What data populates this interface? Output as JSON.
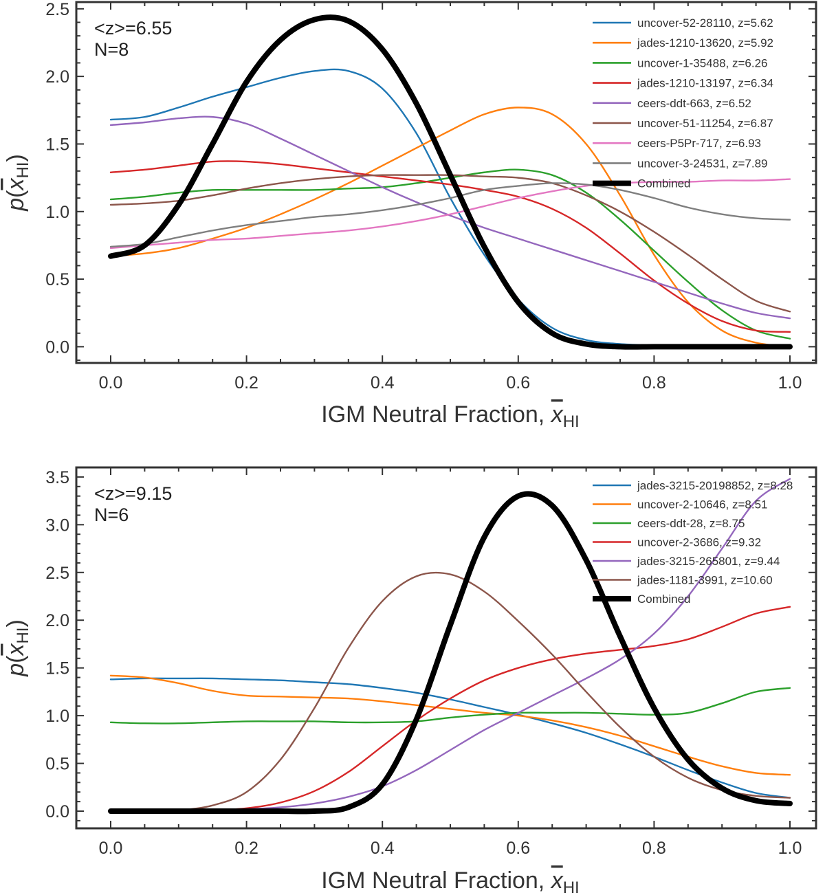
{
  "chart_data": [
    {
      "type": "line",
      "xlabel": "IGM Neutral Fraction, x̄HI",
      "ylabel": "p(x̄HI)",
      "xlabel_text": "IGM Neutral Fraction, ",
      "xlabel_sym": "x",
      "xlabel_sub": "HI",
      "ylabel_p": "p(",
      "ylabel_sym": "x",
      "ylabel_sub": "HI",
      "ylabel_close": ")",
      "xlim": [
        0.0,
        1.0
      ],
      "ylim": [
        -0.12,
        2.55
      ],
      "xticks": [
        0.0,
        0.2,
        0.4,
        0.6,
        0.8,
        1.0
      ],
      "xtick_labels": [
        "0.0",
        "0.2",
        "0.4",
        "0.6",
        "0.8",
        "1.0"
      ],
      "yticks": [
        0.0,
        0.5,
        1.0,
        1.5,
        2.0,
        2.5
      ],
      "ytick_labels": [
        "0.0",
        "0.5",
        "1.0",
        "1.5",
        "2.0",
        "2.5"
      ],
      "annotation_lines": [
        "<z>=6.55",
        "N=8"
      ],
      "legend_position": "top-right",
      "grid": false,
      "x": [
        0.0,
        0.05,
        0.1,
        0.15,
        0.2,
        0.25,
        0.3,
        0.35,
        0.4,
        0.45,
        0.5,
        0.55,
        0.6,
        0.65,
        0.7,
        0.75,
        0.8,
        0.85,
        0.9,
        0.95,
        1.0
      ],
      "series": [
        {
          "name": "uncover-52-28110, z=5.62",
          "color": "#1f77b4",
          "values": [
            1.68,
            1.7,
            1.77,
            1.85,
            1.92,
            1.99,
            2.04,
            2.04,
            1.91,
            1.58,
            1.1,
            0.68,
            0.35,
            0.14,
            0.05,
            0.02,
            0.01,
            0.0,
            0.0,
            0.0,
            0.0
          ]
        },
        {
          "name": "jades-1210-13620, z=5.92",
          "color": "#ff7f0e",
          "values": [
            0.67,
            0.69,
            0.73,
            0.8,
            0.88,
            0.98,
            1.09,
            1.21,
            1.34,
            1.47,
            1.6,
            1.72,
            1.77,
            1.72,
            1.5,
            1.12,
            0.68,
            0.33,
            0.12,
            0.03,
            0.0
          ]
        },
        {
          "name": "uncover-1-35488, z=6.26",
          "color": "#2ca02c",
          "values": [
            1.09,
            1.11,
            1.14,
            1.16,
            1.16,
            1.16,
            1.16,
            1.17,
            1.18,
            1.21,
            1.25,
            1.29,
            1.31,
            1.27,
            1.14,
            0.94,
            0.71,
            0.48,
            0.27,
            0.12,
            0.06
          ]
        },
        {
          "name": "jades-1210-13197, z=6.34",
          "color": "#d62728",
          "values": [
            1.29,
            1.31,
            1.34,
            1.37,
            1.37,
            1.35,
            1.32,
            1.29,
            1.26,
            1.23,
            1.2,
            1.16,
            1.11,
            1.02,
            0.88,
            0.69,
            0.49,
            0.32,
            0.19,
            0.12,
            0.11
          ]
        },
        {
          "name": "ceers-ddt-663, z=6.52",
          "color": "#9467bd",
          "values": [
            1.64,
            1.66,
            1.69,
            1.7,
            1.65,
            1.54,
            1.42,
            1.3,
            1.18,
            1.07,
            0.97,
            0.88,
            0.8,
            0.72,
            0.64,
            0.56,
            0.48,
            0.4,
            0.32,
            0.25,
            0.21
          ]
        },
        {
          "name": "uncover-51-11254, z=6.87",
          "color": "#8c564b",
          "values": [
            1.05,
            1.06,
            1.08,
            1.12,
            1.17,
            1.21,
            1.24,
            1.26,
            1.27,
            1.27,
            1.27,
            1.26,
            1.25,
            1.21,
            1.12,
            1.0,
            0.85,
            0.68,
            0.5,
            0.34,
            0.26
          ]
        },
        {
          "name": "ceers-P5Pr-717, z=6.93",
          "color": "#e377c2",
          "values": [
            0.73,
            0.75,
            0.77,
            0.79,
            0.8,
            0.82,
            0.84,
            0.86,
            0.89,
            0.93,
            0.98,
            1.04,
            1.1,
            1.15,
            1.19,
            1.21,
            1.22,
            1.22,
            1.23,
            1.23,
            1.24
          ]
        },
        {
          "name": "uncover-3-24531, z=7.89",
          "color": "#7f7f7f",
          "values": [
            0.74,
            0.76,
            0.81,
            0.86,
            0.9,
            0.93,
            0.96,
            0.98,
            1.01,
            1.05,
            1.1,
            1.16,
            1.19,
            1.21,
            1.2,
            1.16,
            1.1,
            1.03,
            0.98,
            0.95,
            0.94
          ]
        },
        {
          "name": "Combined",
          "color": "#000000",
          "width": 8,
          "values": [
            0.67,
            0.75,
            1.05,
            1.5,
            1.96,
            2.27,
            2.42,
            2.41,
            2.2,
            1.8,
            1.27,
            0.74,
            0.33,
            0.1,
            0.02,
            0.0,
            0.0,
            0.0,
            0.0,
            0.0,
            0.0
          ]
        }
      ]
    },
    {
      "type": "line",
      "xlabel": "IGM Neutral Fraction, x̄HI",
      "ylabel": "p(x̄HI)",
      "xlabel_text": "IGM Neutral Fraction, ",
      "xlabel_sym": "x",
      "xlabel_sub": "HI",
      "ylabel_p": "p(",
      "ylabel_sym": "x",
      "ylabel_sub": "HI",
      "ylabel_close": ")",
      "xlim": [
        0.0,
        1.0
      ],
      "ylim": [
        -0.18,
        3.6
      ],
      "xticks": [
        0.0,
        0.2,
        0.4,
        0.6,
        0.8,
        1.0
      ],
      "xtick_labels": [
        "0.0",
        "0.2",
        "0.4",
        "0.6",
        "0.8",
        "1.0"
      ],
      "yticks": [
        0.0,
        0.5,
        1.0,
        1.5,
        2.0,
        2.5,
        3.0,
        3.5
      ],
      "ytick_labels": [
        "0.0",
        "0.5",
        "1.0",
        "1.5",
        "2.0",
        "2.5",
        "3.0",
        "3.5"
      ],
      "annotation_lines": [
        "<z>=9.15",
        "N=6"
      ],
      "legend_position": "top-right",
      "grid": false,
      "x": [
        0.0,
        0.05,
        0.1,
        0.15,
        0.2,
        0.25,
        0.3,
        0.35,
        0.4,
        0.45,
        0.5,
        0.55,
        0.6,
        0.65,
        0.7,
        0.75,
        0.8,
        0.85,
        0.9,
        0.95,
        1.0
      ],
      "series": [
        {
          "name": "jades-3215-20198852, z=8.28",
          "color": "#1f77b4",
          "values": [
            1.38,
            1.39,
            1.39,
            1.39,
            1.38,
            1.37,
            1.35,
            1.33,
            1.29,
            1.24,
            1.17,
            1.09,
            1.01,
            0.92,
            0.82,
            0.7,
            0.57,
            0.43,
            0.3,
            0.19,
            0.14
          ]
        },
        {
          "name": "uncover-2-10646, z=8.51",
          "color": "#ff7f0e",
          "values": [
            1.42,
            1.4,
            1.34,
            1.26,
            1.21,
            1.2,
            1.19,
            1.18,
            1.15,
            1.11,
            1.07,
            1.03,
            1.0,
            0.95,
            0.88,
            0.79,
            0.68,
            0.57,
            0.47,
            0.4,
            0.38
          ]
        },
        {
          "name": "ceers-ddt-28, z=8.75",
          "color": "#2ca02c",
          "values": [
            0.93,
            0.92,
            0.92,
            0.93,
            0.94,
            0.94,
            0.94,
            0.93,
            0.93,
            0.94,
            0.98,
            1.01,
            1.03,
            1.03,
            1.03,
            1.02,
            1.01,
            1.03,
            1.13,
            1.25,
            1.29
          ]
        },
        {
          "name": "uncover-2-3686, z=9.32",
          "color": "#d62728",
          "values": [
            0.0,
            0.0,
            0.0,
            0.01,
            0.03,
            0.09,
            0.21,
            0.41,
            0.68,
            0.95,
            1.18,
            1.37,
            1.5,
            1.59,
            1.65,
            1.69,
            1.73,
            1.8,
            1.93,
            2.07,
            2.14
          ]
        },
        {
          "name": "jades-3215-265801, z=9.44",
          "color": "#9467bd",
          "values": [
            0.0,
            0.0,
            0.0,
            0.01,
            0.02,
            0.04,
            0.08,
            0.15,
            0.26,
            0.43,
            0.64,
            0.85,
            1.03,
            1.21,
            1.39,
            1.59,
            1.86,
            2.25,
            2.75,
            3.25,
            3.48
          ]
        },
        {
          "name": "jades-1181-3991, z=10.60",
          "color": "#8c564b",
          "values": [
            0.0,
            0.0,
            0.01,
            0.06,
            0.2,
            0.54,
            1.08,
            1.71,
            2.2,
            2.46,
            2.48,
            2.3,
            1.99,
            1.64,
            1.25,
            0.88,
            0.57,
            0.35,
            0.22,
            0.16,
            0.14
          ]
        },
        {
          "name": "Combined",
          "color": "#000000",
          "width": 8,
          "values": [
            0.0,
            0.0,
            0.0,
            0.0,
            0.0,
            0.0,
            0.0,
            0.04,
            0.28,
            0.96,
            1.95,
            2.87,
            3.3,
            3.2,
            2.63,
            1.83,
            1.08,
            0.54,
            0.24,
            0.11,
            0.08
          ]
        }
      ]
    }
  ]
}
